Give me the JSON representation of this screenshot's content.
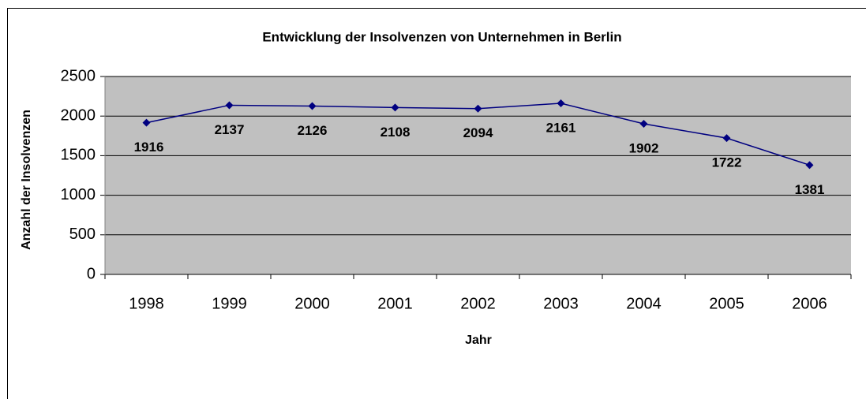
{
  "chart_data": {
    "type": "line",
    "title": "Entwicklung der Insolvenzen von Unternehmen in Berlin",
    "x_label": "Jahr",
    "y_label": "Anzahl der Insolvenzen",
    "categories": [
      "1998",
      "1999",
      "2000",
      "2001",
      "2002",
      "2003",
      "2004",
      "2005",
      "2006"
    ],
    "series": [
      {
        "name": "Insolvenzen",
        "color": "#000080",
        "values": [
          1916,
          2137,
          2126,
          2108,
          2094,
          2161,
          1902,
          1722,
          1381
        ]
      }
    ],
    "ylim": [
      0,
      2500
    ],
    "yticks": [
      0,
      500,
      1000,
      1500,
      2000,
      2500
    ],
    "grid": true
  }
}
